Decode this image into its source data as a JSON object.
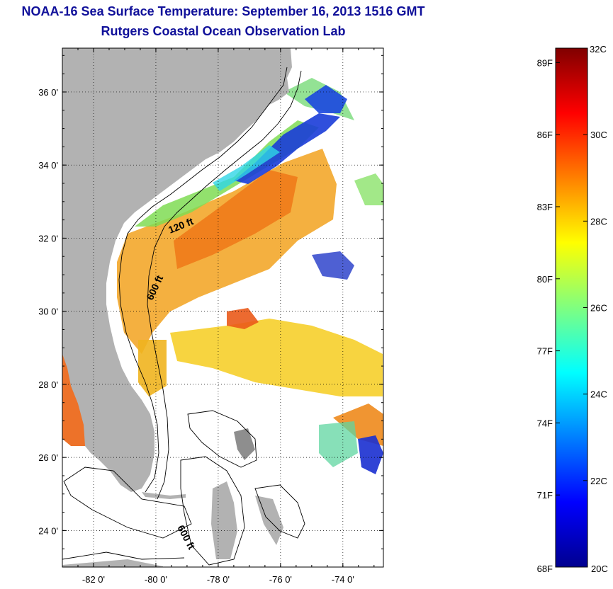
{
  "title": "NOAA-16 Sea Surface Temperature:  September 16, 2013 1516 GMT",
  "subtitle": "Rutgers Coastal Ocean Observation Lab",
  "map": {
    "lat_ticks": [
      {
        "value": 36,
        "label": "36 0'"
      },
      {
        "value": 34,
        "label": "34 0'"
      },
      {
        "value": 32,
        "label": "32 0'"
      },
      {
        "value": 30,
        "label": "30 0'"
      },
      {
        "value": 28,
        "label": "28 0'"
      },
      {
        "value": 26,
        "label": "26 0'"
      },
      {
        "value": 24,
        "label": "24 0'"
      }
    ],
    "lon_ticks": [
      {
        "value": -82,
        "label": "-82 0'"
      },
      {
        "value": -80,
        "label": "-80 0'"
      },
      {
        "value": -78,
        "label": "-78 0'"
      },
      {
        "value": -76,
        "label": "-76 0'"
      },
      {
        "value": -74,
        "label": "-74 0'"
      }
    ],
    "lat_range": [
      23.0,
      37.2
    ],
    "lon_range": [
      -83.0,
      -72.7
    ],
    "grid": "dotted",
    "contour_labels": [
      "120 ft",
      "600 ft",
      "600 ft"
    ],
    "land_color": "#b2b2b2",
    "no_data_color": "#ffffff"
  },
  "colorbar": {
    "top_label": "32C",
    "bottom_left_label": "68F",
    "bottom_right_label": "20C",
    "celsius_ticks": [
      "32C",
      "30C",
      "28C",
      "26C",
      "24C",
      "22C",
      "20C"
    ],
    "celsius_labels_side": [
      "30C",
      "28C",
      "26C",
      "24C",
      "22C"
    ],
    "fahrenheit_labels": [
      "89F",
      "86F",
      "83F",
      "80F",
      "77F",
      "74F",
      "71F"
    ],
    "range_c": [
      20,
      32
    ],
    "colormap": "jet"
  }
}
